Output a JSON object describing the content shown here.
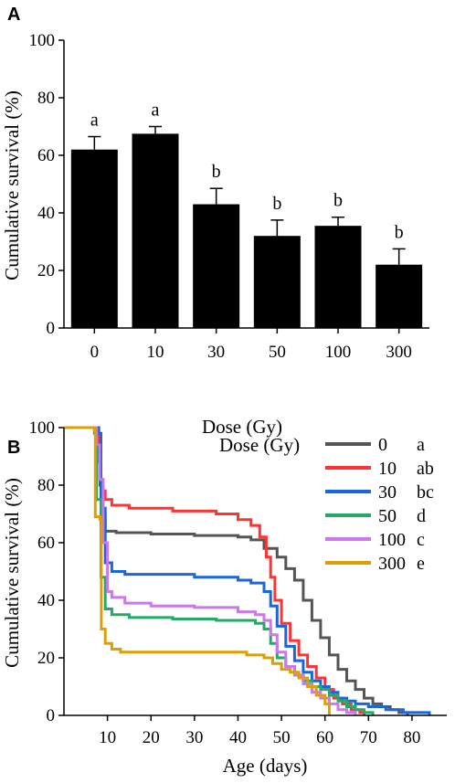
{
  "chart_data": [
    {
      "panel": "A",
      "type": "bar",
      "xlabel": "Dose (Gy)",
      "ylabel": "Cumulative survival (%)",
      "ylim": [
        0,
        100
      ],
      "yticks": [
        "0",
        "20",
        "40",
        "60",
        "80",
        "100"
      ],
      "categories": [
        "0",
        "10",
        "30",
        "50",
        "100",
        "300"
      ],
      "values": [
        62,
        67.5,
        43,
        32,
        35.5,
        22
      ],
      "errors": [
        4.5,
        2.5,
        5.5,
        5.5,
        3,
        5.5
      ],
      "letters": [
        "a",
        "a",
        "b",
        "b",
        "b",
        "b"
      ],
      "bar_color": "#000000"
    },
    {
      "panel": "B",
      "type": "line",
      "xlabel": "Age (days)",
      "ylabel": "Cumulative survival (%)",
      "xlim": [
        0,
        88
      ],
      "ylim": [
        0,
        100
      ],
      "xticks": [
        "10",
        "20",
        "30",
        "40",
        "50",
        "60",
        "70",
        "80"
      ],
      "yticks": [
        "0",
        "20",
        "40",
        "60",
        "80",
        "100"
      ],
      "legend_title": "Dose (Gy)",
      "legend_position": "top-right",
      "series": [
        {
          "name": "0",
          "letter": "a",
          "color": "#555555",
          "points": [
            [
              0,
              100
            ],
            [
              6.5,
              100
            ],
            [
              7.5,
              99
            ],
            [
              7.8,
              88
            ],
            [
              8.3,
              80
            ],
            [
              9,
              70
            ],
            [
              9.5,
              64
            ],
            [
              12,
              63.5
            ],
            [
              20,
              63
            ],
            [
              30,
              62.5
            ],
            [
              40,
              62
            ],
            [
              43,
              61
            ],
            [
              46,
              58
            ],
            [
              49,
              55
            ],
            [
              51,
              51
            ],
            [
              53,
              47
            ],
            [
              55,
              40
            ],
            [
              57,
              33
            ],
            [
              59,
              27
            ],
            [
              61,
              21
            ],
            [
              63,
              16
            ],
            [
              65,
              12
            ],
            [
              67,
              9
            ],
            [
              69,
              6
            ],
            [
              71,
              4
            ],
            [
              73,
              3
            ],
            [
              75,
              2
            ],
            [
              77,
              1
            ],
            [
              79,
              0
            ]
          ]
        },
        {
          "name": "10",
          "letter": "ab",
          "color": "#ff3333",
          "points": [
            [
              0,
              100
            ],
            [
              7.5,
              100
            ],
            [
              8,
              94
            ],
            [
              8.2,
              82
            ],
            [
              8.8,
              78
            ],
            [
              9.5,
              75
            ],
            [
              11,
              73
            ],
            [
              15,
              72
            ],
            [
              25,
              71
            ],
            [
              35,
              70
            ],
            [
              40,
              68
            ],
            [
              43,
              66
            ],
            [
              45,
              62
            ],
            [
              46.5,
              55
            ],
            [
              47.5,
              48
            ],
            [
              48.5,
              40
            ],
            [
              50,
              32
            ],
            [
              52,
              26
            ],
            [
              54,
              21
            ],
            [
              56,
              17
            ],
            [
              58,
              13
            ],
            [
              60,
              9
            ],
            [
              62,
              6
            ],
            [
              64,
              4
            ],
            [
              66,
              2
            ],
            [
              68,
              1
            ],
            [
              69,
              0
            ]
          ]
        },
        {
          "name": "30",
          "letter": "bc",
          "color": "#1a66dd",
          "points": [
            [
              0,
              100
            ],
            [
              7,
              100
            ],
            [
              8,
              98
            ],
            [
              8.5,
              72
            ],
            [
              9.5,
              53
            ],
            [
              11,
              50
            ],
            [
              14,
              49
            ],
            [
              20,
              49
            ],
            [
              30,
              48
            ],
            [
              40,
              47
            ],
            [
              43,
              46
            ],
            [
              46,
              43
            ],
            [
              47.5,
              38
            ],
            [
              49,
              31
            ],
            [
              51,
              24
            ],
            [
              53,
              19
            ],
            [
              55,
              15
            ],
            [
              57,
              12
            ],
            [
              59,
              10
            ],
            [
              61,
              8
            ],
            [
              63,
              6
            ],
            [
              65,
              5
            ],
            [
              67,
              4
            ],
            [
              70,
              3
            ],
            [
              74,
              2
            ],
            [
              78,
              1
            ],
            [
              82,
              1
            ],
            [
              84,
              0
            ]
          ]
        },
        {
          "name": "50",
          "letter": "d",
          "color": "#22aa66",
          "points": [
            [
              0,
              100
            ],
            [
              6,
              100
            ],
            [
              7,
              98
            ],
            [
              7.5,
              75
            ],
            [
              8.5,
              48
            ],
            [
              9.5,
              37
            ],
            [
              11,
              35
            ],
            [
              15,
              34
            ],
            [
              25,
              33.5
            ],
            [
              35,
              33
            ],
            [
              44,
              32
            ],
            [
              46,
              30
            ],
            [
              47.5,
              25
            ],
            [
              49,
              20
            ],
            [
              51,
              17
            ],
            [
              53,
              14
            ],
            [
              55,
              12
            ],
            [
              57,
              10
            ],
            [
              59,
              9
            ],
            [
              61,
              7
            ],
            [
              63,
              5
            ],
            [
              65,
              3
            ],
            [
              67,
              2
            ],
            [
              69,
              1
            ],
            [
              71,
              0
            ]
          ]
        },
        {
          "name": "100",
          "letter": "c",
          "color": "#cc77ee",
          "points": [
            [
              0,
              100
            ],
            [
              6,
              100
            ],
            [
              7.5,
              94
            ],
            [
              8.2,
              82
            ],
            [
              9,
              60
            ],
            [
              10,
              43
            ],
            [
              11,
              41
            ],
            [
              14,
              39
            ],
            [
              20,
              38
            ],
            [
              30,
              37.5
            ],
            [
              40,
              36
            ],
            [
              44,
              35
            ],
            [
              46,
              33
            ],
            [
              47.5,
              28
            ],
            [
              49,
              22
            ],
            [
              51,
              17
            ],
            [
              53,
              14
            ],
            [
              55,
              11
            ],
            [
              57,
              8
            ],
            [
              59,
              6
            ],
            [
              61,
              4
            ],
            [
              63,
              2
            ],
            [
              65,
              1
            ],
            [
              67,
              0
            ]
          ]
        },
        {
          "name": "300",
          "letter": "e",
          "color": "#dda000",
          "points": [
            [
              0,
              100
            ],
            [
              6,
              100
            ],
            [
              7,
              99
            ],
            [
              7.2,
              69
            ],
            [
              8.3,
              68
            ],
            [
              8.6,
              30
            ],
            [
              9.5,
              25
            ],
            [
              11,
              23
            ],
            [
              13,
              22
            ],
            [
              20,
              22
            ],
            [
              30,
              22
            ],
            [
              40,
              22
            ],
            [
              42,
              21
            ],
            [
              46,
              20
            ],
            [
              48,
              18
            ],
            [
              50,
              16
            ],
            [
              52,
              15
            ],
            [
              54,
              13
            ],
            [
              56,
              10
            ],
            [
              58,
              7
            ],
            [
              60,
              4
            ],
            [
              61,
              0
            ]
          ]
        }
      ]
    }
  ],
  "panels": {
    "A": "A",
    "B": "B"
  }
}
